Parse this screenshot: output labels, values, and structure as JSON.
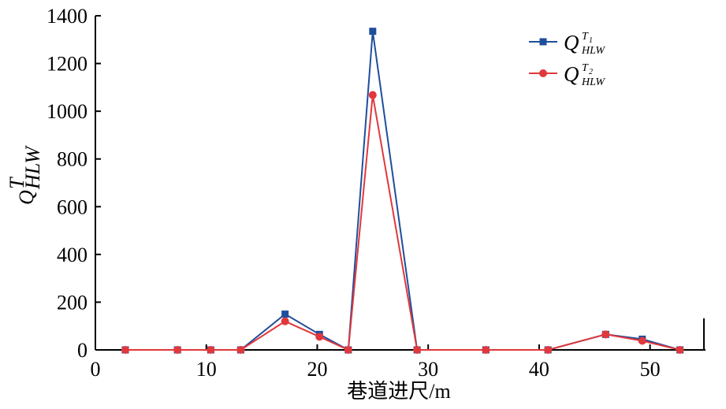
{
  "chart_data": {
    "type": "line",
    "xlabel": "巷道进尺/m",
    "ylabel": {
      "base": "Q",
      "sup": "T",
      "sub": "HLW"
    },
    "xlim": [
      0,
      55
    ],
    "ylim": [
      0,
      1400
    ],
    "xticks": [
      0,
      10,
      20,
      30,
      40,
      50
    ],
    "yticks": [
      0,
      200,
      400,
      600,
      800,
      1000,
      1200,
      1400
    ],
    "grid": false,
    "legend_position": "top-right",
    "series": [
      {
        "name": {
          "base": "Q",
          "sup": "T",
          "supsub": "1",
          "sub": "HLW"
        },
        "color": "#1f4e9c",
        "marker": "square",
        "x": [
          2.7,
          7.4,
          10.4,
          13.1,
          17.1,
          20.2,
          22.8,
          25.0,
          29.0,
          35.2,
          40.8,
          46.0,
          49.3,
          52.7
        ],
        "y": [
          0,
          0,
          0,
          0,
          150,
          65,
          0,
          1335,
          0,
          0,
          0,
          65,
          45,
          0
        ]
      },
      {
        "name": {
          "base": "Q",
          "sup": "T",
          "supsub": "2",
          "sub": "HLW"
        },
        "color": "#e0383c",
        "marker": "circle",
        "x": [
          2.7,
          7.4,
          10.4,
          13.1,
          17.1,
          20.2,
          22.8,
          25.0,
          29.0,
          35.2,
          40.8,
          46.0,
          49.3,
          52.7
        ],
        "y": [
          0,
          0,
          0,
          0,
          120,
          55,
          0,
          1068,
          0,
          0,
          0,
          65,
          38,
          0
        ]
      }
    ]
  }
}
